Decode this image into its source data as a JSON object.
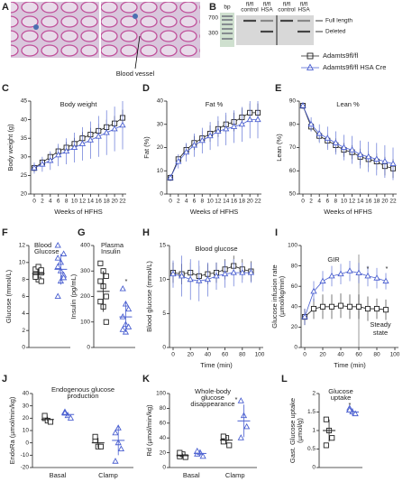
{
  "histology": {
    "panel": "A",
    "annotation": "Blood vessel"
  },
  "gel": {
    "panel": "B",
    "unit": "bp",
    "markers": [
      700,
      300
    ],
    "lanes": [
      [
        "fl/fl",
        "control"
      ],
      [
        "fl/fl",
        "HSA"
      ],
      [
        "fl/fl",
        "control"
      ],
      [
        "fl/fl",
        "HSA"
      ]
    ],
    "bands": [
      "Full length",
      "Deleted"
    ]
  },
  "chart_data": [
    {
      "panel": "C",
      "type": "line",
      "title": "Body weight",
      "xlabel": "Weeks of HFHS",
      "ylabel": "Body weight (g)",
      "x": [
        0,
        2,
        4,
        6,
        8,
        10,
        12,
        14,
        16,
        18,
        20,
        22
      ],
      "xlim": [
        0,
        22
      ],
      "xticks": [
        0,
        2,
        4,
        6,
        8,
        10,
        12,
        14,
        16,
        18,
        20,
        22
      ],
      "ylim": [
        20,
        45
      ],
      "yticks": [
        20,
        25,
        30,
        35,
        40,
        45
      ],
      "series": [
        {
          "name": "Adamts9fl/fl",
          "color": "#222222",
          "values": [
            27,
            28.5,
            30,
            31.5,
            32.5,
            33.5,
            35,
            36,
            37,
            38,
            39,
            40.5
          ],
          "errors": [
            1,
            1,
            1.2,
            1.3,
            1.5,
            1.6,
            1.7,
            1.8,
            1.9,
            2,
            2,
            2.2
          ]
        },
        {
          "name": "Adamts9fl/fl HSA Cre",
          "color": "#4a5fd0",
          "values": [
            27,
            28,
            29,
            30.5,
            31.5,
            32.5,
            33.5,
            34.5,
            35.5,
            36.5,
            37.5,
            38.5
          ],
          "errors": [
            1.5,
            2,
            2.5,
            3,
            3.5,
            4,
            4.5,
            5,
            5.5,
            6,
            6,
            6.5
          ]
        }
      ]
    },
    {
      "panel": "D",
      "type": "line",
      "title": "Fat %",
      "xlabel": "Weeks of HFHS",
      "ylabel": "Fat (%)",
      "x": [
        0,
        2,
        4,
        6,
        8,
        10,
        12,
        14,
        16,
        18,
        20,
        22
      ],
      "xlim": [
        0,
        22
      ],
      "xticks": [
        0,
        2,
        4,
        6,
        8,
        10,
        12,
        14,
        16,
        18,
        20,
        22
      ],
      "ylim": [
        0,
        40
      ],
      "yticks": [
        0,
        10,
        20,
        30,
        40
      ],
      "series": [
        {
          "name": "Adamts9fl/fl",
          "color": "#222222",
          "values": [
            7,
            15,
            19,
            22,
            24,
            26,
            28,
            30,
            31,
            33,
            35,
            35
          ],
          "errors": [
            1,
            2,
            2.5,
            3,
            3,
            3.5,
            3.5,
            4,
            4,
            4,
            4,
            4
          ]
        },
        {
          "name": "Adamts9fl/fl HSA Cre",
          "color": "#4a5fd0",
          "values": [
            7,
            14,
            18,
            21,
            23,
            25,
            27,
            28,
            29,
            30,
            32,
            32
          ],
          "errors": [
            1.5,
            3,
            4,
            5,
            5.5,
            6,
            6.5,
            7,
            7,
            7.5,
            8,
            8
          ]
        }
      ]
    },
    {
      "panel": "E",
      "type": "line",
      "title": "Lean %",
      "xlabel": "Weeks of HFHS",
      "ylabel": "Lean (%)",
      "x": [
        0,
        2,
        4,
        6,
        8,
        10,
        12,
        14,
        16,
        18,
        20,
        22
      ],
      "xlim": [
        0,
        22
      ],
      "xticks": [
        0,
        2,
        4,
        6,
        8,
        10,
        12,
        14,
        16,
        18,
        20,
        22
      ],
      "ylim": [
        50,
        90
      ],
      "yticks": [
        50,
        60,
        70,
        80,
        90
      ],
      "series": [
        {
          "name": "Adamts9fl/fl",
          "color": "#222222",
          "values": [
            88,
            79,
            75,
            73,
            71,
            69,
            68,
            66,
            65,
            64,
            62,
            61
          ],
          "errors": [
            1,
            2,
            2.5,
            3,
            3,
            3,
            3,
            3.5,
            3.5,
            3.5,
            4,
            4
          ]
        },
        {
          "name": "Adamts9fl/fl HSA Cre",
          "color": "#4a5fd0",
          "values": [
            88,
            80,
            76,
            74,
            72,
            70,
            69,
            67,
            66,
            65,
            64,
            63
          ],
          "errors": [
            1.5,
            3,
            4,
            5,
            5,
            5.5,
            6,
            6,
            6.5,
            7,
            7,
            7
          ]
        }
      ]
    },
    {
      "panel": "F",
      "type": "dot",
      "title": [
        "Blood",
        "Glucose"
      ],
      "ylabel": "Glucose (mmol/L)",
      "ylim": [
        0,
        12
      ],
      "yticks": [
        0,
        2,
        4,
        6,
        8,
        10,
        12
      ],
      "series": [
        {
          "name": "Adamts9fl/fl",
          "color": "#222222",
          "values": [
            [
              8.5,
              9,
              8.8,
              9.2,
              8,
              7.8,
              8.6,
              9.5,
              9.1,
              8.3
            ]
          ],
          "means": [
            8.7
          ],
          "sds": [
            0.6
          ]
        },
        {
          "name": "Adamts9fl/fl HSA Cre",
          "color": "#4a5fd0",
          "values": [
            [
              6,
              7.8,
              8.5,
              9.5,
              10,
              11,
              12,
              9,
              8.2,
              10.5
            ]
          ],
          "means": [
            9.2
          ],
          "sds": [
            1.8
          ]
        }
      ]
    },
    {
      "panel": "G",
      "type": "dot",
      "title": [
        "Plasma",
        "Insulin"
      ],
      "ylabel": "Insulin (pg/mL)",
      "ylim": [
        0,
        400
      ],
      "yticks": [
        0,
        100,
        200,
        300,
        400
      ],
      "annotations": [
        "*"
      ],
      "series": [
        {
          "name": "Adamts9fl/fl",
          "color": "#222222",
          "values": [
            [
              330,
              300,
              280,
              260,
              240,
              200,
              180,
              160,
              100
            ]
          ],
          "means": [
            220
          ],
          "sds": [
            80
          ]
        },
        {
          "name": "Adamts9fl/fl HSA Cre",
          "color": "#4a5fd0",
          "values": [
            [
              230,
              170,
              150,
              120,
              90,
              80,
              70,
              60
            ]
          ],
          "means": [
            120
          ],
          "sds": [
            60
          ]
        }
      ]
    },
    {
      "panel": "H",
      "type": "line",
      "title": "Blood glucose",
      "xlabel": "Time (min)",
      "ylabel": "Blood glucose (mmol/L)",
      "x": [
        0,
        10,
        20,
        30,
        40,
        50,
        60,
        70,
        80,
        90
      ],
      "xlim": [
        0,
        100
      ],
      "xticks": [
        0,
        20,
        40,
        60,
        80,
        100
      ],
      "ylim": [
        0,
        15
      ],
      "yticks": [
        0,
        5,
        10,
        15
      ],
      "series": [
        {
          "name": "Adamts9fl/fl",
          "color": "#222222",
          "values": [
            11,
            10.8,
            11,
            10.5,
            10.8,
            11,
            11.5,
            12,
            11.5,
            11.2
          ],
          "errors": [
            1.5,
            1.5,
            1.5,
            1.5,
            1.5,
            1.5,
            1.5,
            1.5,
            1.5,
            1.5
          ]
        },
        {
          "name": "Adamts9fl/fl HSA Cre",
          "color": "#4a5fd0",
          "values": [
            10.8,
            10.5,
            10,
            9.8,
            10,
            10.5,
            10.8,
            11,
            11,
            11
          ],
          "errors": [
            2,
            3,
            3,
            3,
            2.5,
            2,
            2,
            2,
            1.5,
            1.5
          ]
        }
      ]
    },
    {
      "panel": "I",
      "type": "line",
      "title": "GIR",
      "xlabel": "Time (min)",
      "ylabel": [
        "Glucose infusion rate",
        "(µmol/kg/min)"
      ],
      "x": [
        0,
        10,
        20,
        30,
        40,
        50,
        60,
        70,
        80,
        90
      ],
      "xlim": [
        0,
        100
      ],
      "xticks": [
        0,
        20,
        40,
        60,
        80,
        100
      ],
      "ylim": [
        0,
        100
      ],
      "yticks": [
        0,
        20,
        40,
        60,
        80,
        100
      ],
      "annotations": [
        "*",
        "*",
        "Steady",
        "state"
      ],
      "series": [
        {
          "name": "Adamts9fl/fl",
          "color": "#222222",
          "values": [
            30,
            38,
            40,
            40,
            41,
            40,
            40,
            38,
            38,
            37
          ],
          "errors": [
            8,
            10,
            12,
            12,
            12,
            12,
            12,
            12,
            10,
            10
          ]
        },
        {
          "name": "Adamts9fl/fl HSA Cre",
          "color": "#4a5fd0",
          "values": [
            30,
            55,
            65,
            70,
            72,
            75,
            73,
            70,
            68,
            65
          ],
          "errors": [
            8,
            10,
            10,
            10,
            10,
            10,
            10,
            10,
            10,
            8
          ]
        }
      ]
    },
    {
      "panel": "J",
      "type": "dot",
      "title": [
        "Endogenous glucose",
        "production"
      ],
      "ylabel": "EndoRa (µmol/min/kg)",
      "categories": [
        "Basal",
        "Clamp"
      ],
      "ylim": [
        -20,
        40
      ],
      "yticks": [
        -20,
        -10,
        0,
        10,
        20,
        30,
        40
      ],
      "series": [
        {
          "name": "Adamts9fl/fl",
          "color": "#222222",
          "values": [
            [
              20,
              18,
              17,
              22
            ],
            [
              2,
              -3,
              -3,
              5
            ]
          ],
          "means": [
            19,
            0
          ],
          "sds": [
            2,
            4
          ]
        },
        {
          "name": "Adamts9fl/fl HSA Cre",
          "color": "#4a5fd0",
          "values": [
            [
              25,
              22,
              20,
              24
            ],
            [
              8,
              0,
              -5,
              -15,
              12
            ]
          ],
          "means": [
            23,
            2
          ],
          "sds": [
            2,
            12
          ]
        }
      ]
    },
    {
      "panel": "K",
      "type": "dot",
      "title": [
        "Whole-body",
        "glucose",
        "disappearance"
      ],
      "ylabel": "Rd (µmol/min/kg)",
      "categories": [
        "Basal",
        "Clamp"
      ],
      "ylim": [
        0,
        100
      ],
      "yticks": [
        0,
        20,
        40,
        60,
        80,
        100
      ],
      "annotations": [
        "*"
      ],
      "series": [
        {
          "name": "Adamts9fl/fl",
          "color": "#222222",
          "values": [
            [
              15,
              18,
              14,
              20
            ],
            [
              35,
              40,
              30,
              42
            ]
          ],
          "means": [
            16,
            37
          ],
          "sds": [
            3,
            5
          ]
        },
        {
          "name": "Adamts9fl/fl HSA Cre",
          "color": "#4a5fd0",
          "values": [
            [
              18,
              20,
              15,
              22
            ],
            [
              90,
              70,
              55,
              40
            ]
          ],
          "means": [
            19,
            63
          ],
          "sds": [
            3,
            22
          ]
        }
      ]
    },
    {
      "panel": "L",
      "type": "dot",
      "title": [
        "Glucose",
        "uptake"
      ],
      "ylabel": [
        "Gast. Glucose uptake",
        "(µmol/g)"
      ],
      "ylim": [
        0,
        2
      ],
      "yticks": [
        0,
        0.5,
        1,
        1.5,
        2
      ],
      "annotations": [
        "*"
      ],
      "series": [
        {
          "name": "Adamts9fl/fl",
          "color": "#222222",
          "values": [
            [
              1.3,
              1,
              0.8,
              0.6
            ]
          ],
          "means": [
            1
          ],
          "sds": [
            0.3
          ]
        },
        {
          "name": "Adamts9fl/fl HSA Cre",
          "color": "#4a5fd0",
          "values": [
            [
              1.6,
              1.5,
              1.45,
              1.55
            ]
          ],
          "means": [
            1.5
          ],
          "sds": [
            0.1
          ]
        }
      ]
    }
  ]
}
